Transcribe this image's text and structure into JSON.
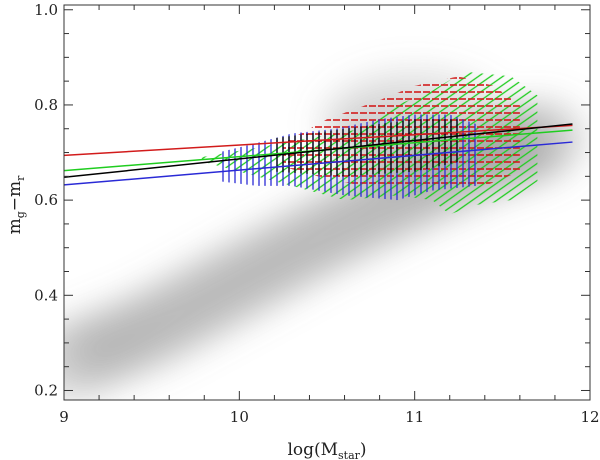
{
  "chart_data": {
    "type": "scatter",
    "title": "",
    "xlabel": "log(M",
    "xlabel_sub": "star",
    "xlabel_close": ")",
    "ylabel_m1": "m",
    "ylabel_sub1": "g",
    "ylabel_minus": "−",
    "ylabel_m2": "m",
    "ylabel_sub2": "r",
    "xlim": [
      9,
      12
    ],
    "ylim": [
      0.18,
      1.01
    ],
    "xticks": [
      "9",
      "10",
      "11",
      "12"
    ],
    "yticks": [
      "0.2",
      "0.4",
      "0.6",
      "0.8",
      "1.0"
    ],
    "grid": false,
    "background_density": {
      "color": "#7f7f7f",
      "ridge": [
        [
          9.0,
          0.255
        ],
        [
          9.5,
          0.33
        ],
        [
          10.0,
          0.43
        ],
        [
          10.5,
          0.53
        ],
        [
          11.0,
          0.62
        ],
        [
          11.5,
          0.7
        ],
        [
          11.8,
          0.74
        ]
      ],
      "red_clump_center": [
        11.0,
        0.76
      ]
    },
    "series": [
      {
        "color": "#d21b1b",
        "x": [
          9.0,
          11.9
        ],
        "y": [
          0.694,
          0.757
        ]
      },
      {
        "color": "#1fcd1f",
        "x": [
          9.0,
          11.9
        ],
        "y": [
          0.662,
          0.747
        ]
      },
      {
        "color": "#000000",
        "x": [
          9.0,
          11.9
        ],
        "y": [
          0.648,
          0.76
        ]
      },
      {
        "color": "#2a2ad6",
        "x": [
          9.0,
          11.9
        ],
        "y": [
          0.632,
          0.722
        ]
      }
    ],
    "hatch_regions": [
      {
        "color": "#1fcd1f",
        "style": "diagonal",
        "polygon": [
          [
            9.78,
            0.69
          ],
          [
            10.1,
            0.71
          ],
          [
            10.4,
            0.73
          ],
          [
            10.7,
            0.75
          ],
          [
            10.9,
            0.8
          ],
          [
            11.1,
            0.83
          ],
          [
            11.28,
            0.87
          ],
          [
            11.55,
            0.86
          ],
          [
            11.7,
            0.82
          ],
          [
            11.7,
            0.64
          ],
          [
            11.55,
            0.6
          ],
          [
            11.35,
            0.59
          ],
          [
            11.2,
            0.57
          ],
          [
            11.1,
            0.6
          ],
          [
            10.9,
            0.61
          ],
          [
            10.6,
            0.6
          ],
          [
            10.4,
            0.62
          ],
          [
            10.2,
            0.64
          ],
          [
            10.0,
            0.66
          ],
          [
            9.8,
            0.68
          ]
        ]
      },
      {
        "color": "#d21b1b",
        "style": "horizontal",
        "polygon": [
          [
            10.25,
            0.72
          ],
          [
            10.5,
            0.77
          ],
          [
            10.8,
            0.81
          ],
          [
            11.0,
            0.84
          ],
          [
            11.25,
            0.86
          ],
          [
            11.45,
            0.84
          ],
          [
            11.6,
            0.8
          ],
          [
            11.6,
            0.66
          ],
          [
            11.4,
            0.63
          ],
          [
            11.2,
            0.63
          ],
          [
            10.95,
            0.63
          ],
          [
            10.7,
            0.63
          ],
          [
            10.45,
            0.65
          ],
          [
            10.25,
            0.67
          ]
        ]
      },
      {
        "color": "#2a2ad6",
        "style": "vertical",
        "polygon": [
          [
            9.88,
            0.7
          ],
          [
            10.1,
            0.72
          ],
          [
            10.3,
            0.74
          ],
          [
            10.55,
            0.75
          ],
          [
            10.8,
            0.77
          ],
          [
            11.0,
            0.78
          ],
          [
            11.2,
            0.78
          ],
          [
            11.35,
            0.76
          ],
          [
            11.35,
            0.63
          ],
          [
            11.1,
            0.62
          ],
          [
            10.9,
            0.6
          ],
          [
            10.6,
            0.61
          ],
          [
            10.3,
            0.63
          ],
          [
            10.1,
            0.63
          ],
          [
            9.88,
            0.64
          ]
        ]
      },
      {
        "color": "#000000",
        "style": "vertical",
        "polygon": [
          [
            10.2,
            0.73
          ],
          [
            10.6,
            0.75
          ],
          [
            11.0,
            0.77
          ],
          [
            11.25,
            0.77
          ],
          [
            11.25,
            0.68
          ],
          [
            11.0,
            0.66
          ],
          [
            10.6,
            0.65
          ],
          [
            10.2,
            0.66
          ]
        ]
      }
    ]
  }
}
